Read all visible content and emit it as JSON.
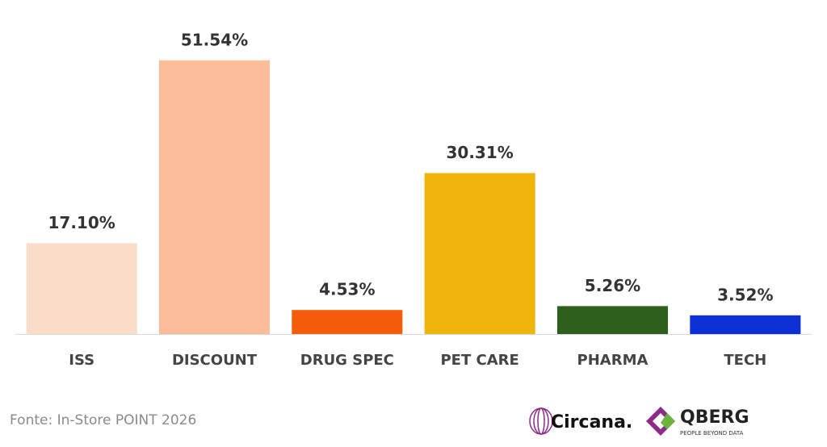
{
  "chart_data": {
    "type": "bar",
    "categories": [
      "ISS",
      "DISCOUNT",
      "DRUG SPEC",
      "PET CARE",
      "PHARMA",
      "TECH"
    ],
    "values": [
      17.1,
      51.54,
      4.53,
      30.31,
      5.26,
      3.52
    ],
    "value_labels": [
      "17.10%",
      "51.54%",
      "4.53%",
      "30.31%",
      "5.26%",
      "3.52%"
    ],
    "colors": [
      "#fbdcc8",
      "#fbbc98",
      "#f45c0b",
      "#f0b50a",
      "#2e5f1d",
      "#0c2fd6"
    ],
    "ylim": [
      0,
      55
    ],
    "grid": false
  },
  "source": "Fonte: In-Store POINT 2026",
  "logos": {
    "circana": "Circana.",
    "qberg": "QBERG",
    "qberg_tagline": "PEOPLE BEYOND DATA"
  }
}
